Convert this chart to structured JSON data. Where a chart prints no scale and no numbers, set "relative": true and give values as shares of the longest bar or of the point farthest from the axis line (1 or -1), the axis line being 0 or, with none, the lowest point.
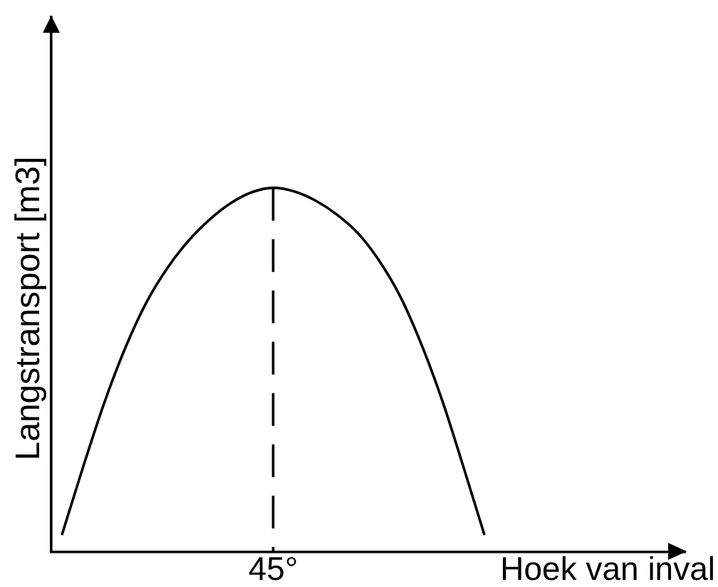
{
  "chart_data": {
    "type": "line",
    "ylabel": "Langstransport [m3]",
    "xlabel": "Hoek van inval",
    "categories": [
      null,
      null,
      null,
      null,
      null,
      null,
      null,
      null,
      null,
      null,
      null,
      null,
      null,
      null,
      null,
      null,
      null,
      null,
      null,
      null,
      null
    ],
    "series": [
      {
        "color": "#000000",
        "values": [
          0.046,
          0.232,
          0.408,
          0.56,
          0.685,
          0.78,
          0.855,
          0.913,
          0.958,
          0.988,
          1,
          0.99,
          0.965,
          0.927,
          0.876,
          0.801,
          0.703,
          0.572,
          0.416,
          0.234,
          0.046
        ]
      }
    ],
    "annotations": [
      "45°"
    ],
    "relative": true,
    "grid": false,
    "legend": false,
    "marker": "none"
  }
}
